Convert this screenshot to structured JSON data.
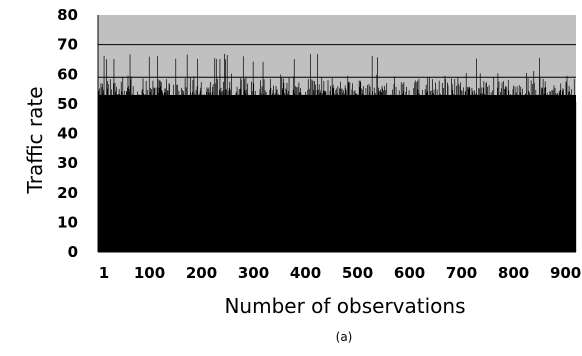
{
  "chart_data": {
    "type": "bar",
    "title": "",
    "xlabel": "Number of observations",
    "ylabel": "Traffic rate",
    "caption": "(a)",
    "ylim": [
      0,
      80
    ],
    "xlim": [
      1,
      920
    ],
    "grid": false,
    "legend": "none",
    "y_ticks": [
      "0",
      "10",
      "20",
      "30",
      "40",
      "50",
      "60",
      "70",
      "80"
    ],
    "x_ticks": [
      "1",
      "100",
      "200",
      "300",
      "400",
      "500",
      "600",
      "700",
      "800",
      "900"
    ],
    "reference_lines": [
      {
        "value": 59
      },
      {
        "value": 70
      }
    ],
    "bars": {
      "count": 920,
      "typical_min": 45,
      "typical_max": 67,
      "floor_value": 53
    },
    "colors": {
      "plot_background": "#c0c0c0",
      "bars": "#000000",
      "axes": "#000000"
    }
  }
}
